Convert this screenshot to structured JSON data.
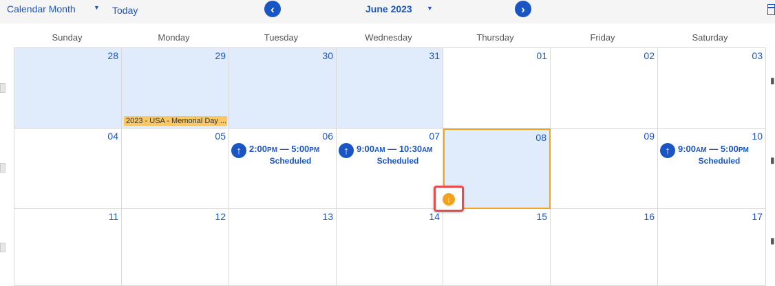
{
  "toolbar": {
    "view_label": "Calendar Month",
    "today_label": "Today",
    "month_label": "June 2023",
    "prev_glyph": "‹",
    "next_glyph": "›",
    "caret": "▼",
    "icons": {
      "prev": "chevron-left-icon",
      "next": "chevron-right-icon",
      "calendar": "calendar-icon"
    }
  },
  "weekdays": [
    "Sunday",
    "Monday",
    "Tuesday",
    "Wednesday",
    "Thursday",
    "Friday",
    "Saturday"
  ],
  "weeks": [
    [
      "28",
      "29",
      "30",
      "31",
      "01",
      "02",
      "03"
    ],
    [
      "04",
      "05",
      "06",
      "07",
      "08",
      "09",
      "10"
    ],
    [
      "11",
      "12",
      "13",
      "14",
      "15",
      "16",
      "17"
    ]
  ],
  "holiday": {
    "label": "2023 - USA - Memorial Day ...",
    "color": "#f9c865"
  },
  "events": [
    {
      "time": "2:00",
      "ampm1": "PM",
      "sep": " — ",
      "end": "5:00",
      "ampm2": "PM",
      "status": "Scheduled",
      "glyph": "↑"
    },
    {
      "time": "9:00",
      "ampm1": "AM",
      "sep": " — ",
      "end": "10:30",
      "ampm2": "AM",
      "status": "Scheduled",
      "glyph": "↑"
    },
    {
      "time": "9:00",
      "ampm1": "AM",
      "sep": " — ",
      "end": "5:00",
      "ampm2": "PM",
      "status": "Scheduled",
      "glyph": "↑"
    }
  ],
  "drag": {
    "glyph": "↓"
  },
  "colors": {
    "accent": "#1a55c4",
    "selected_border": "#f3a21e",
    "outside_month": "#e0ecfb",
    "highlight_border": "#e74c4c"
  }
}
